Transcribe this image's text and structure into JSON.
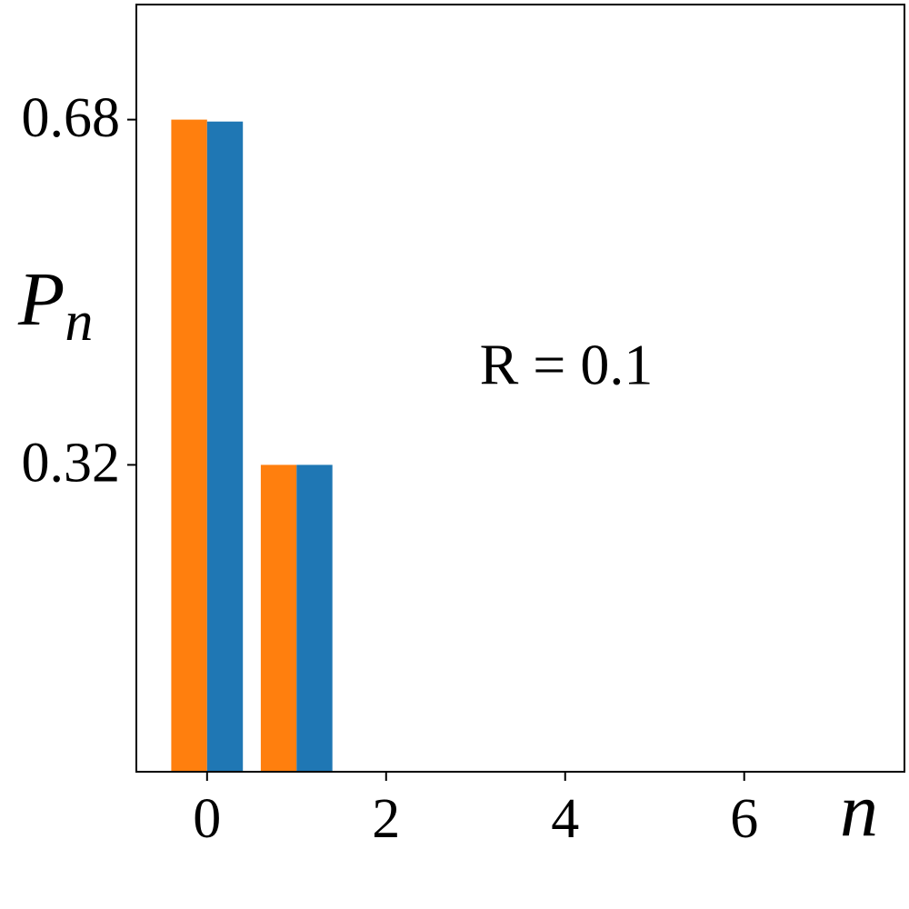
{
  "chart_data": {
    "type": "bar",
    "x": [
      0,
      1
    ],
    "series": [
      {
        "color": "#ff7f0e",
        "values": [
          0.68,
          0.32
        ]
      },
      {
        "color": "#1f77b4",
        "values": [
          0.678,
          0.32
        ]
      }
    ],
    "bar_width": 0.4,
    "xlim": [
      -0.79,
      7.79
    ],
    "xticks": [
      0,
      2,
      4,
      6
    ],
    "ylim": [
      0,
      0.8
    ],
    "yticks": [
      0.32,
      0.68
    ],
    "xlabel": "n",
    "ylabel": "P",
    "ylabel_subscript": "n",
    "annotation": "R = 0.1"
  }
}
